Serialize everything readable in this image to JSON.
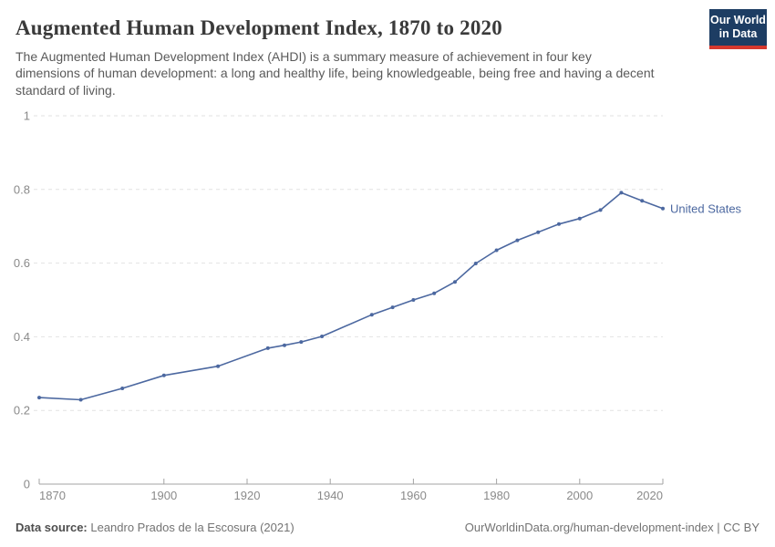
{
  "header": {
    "title": "Augmented Human Development Index, 1870 to 2020",
    "subtitle": "The Augmented Human Development Index (AHDI) is a summary measure of achievement in four key dimensions of human development: a long and healthy life, being knowledgeable, being free and having a decent standard of living.",
    "logo": {
      "line1": "Our World",
      "line2": "in Data",
      "bg_color": "#1d3d63",
      "stripe_color": "#d5382e"
    }
  },
  "chart_data": {
    "type": "line",
    "title": "Augmented Human Development Index, 1870 to 2020",
    "x": [
      1870,
      1880,
      1890,
      1900,
      1913,
      1925,
      1929,
      1933,
      1938,
      1950,
      1955,
      1960,
      1965,
      1970,
      1975,
      1980,
      1985,
      1990,
      1995,
      2000,
      2005,
      2010,
      2015,
      2020
    ],
    "series": [
      {
        "name": "United States",
        "color": "#4c68a0",
        "values": [
          0.235,
          0.229,
          0.26,
          0.295,
          0.32,
          0.369,
          0.377,
          0.386,
          0.401,
          0.46,
          0.48,
          0.5,
          0.518,
          0.549,
          0.599,
          0.635,
          0.662,
          0.684,
          0.706,
          0.721,
          0.744,
          0.791,
          0.769,
          0.748
        ]
      }
    ],
    "xlim": [
      1870,
      2020
    ],
    "ylim": [
      0,
      1
    ],
    "x_ticks": [
      1870,
      1900,
      1920,
      1940,
      1960,
      1980,
      2000,
      2020
    ],
    "y_ticks": [
      0,
      0.2,
      0.4,
      0.6,
      0.8,
      1
    ],
    "y_tick_labels": [
      "0",
      "0.2",
      "0.4",
      "0.6",
      "0.8",
      "1"
    ],
    "grid": "horizontal-dashed",
    "legend_position": "line-end-label",
    "colors": {
      "grid": "#e2e2e2",
      "axis": "#a3a3a3",
      "tick_label": "#8a8a8a"
    }
  },
  "footer": {
    "source_label": "Data source:",
    "source_value": " Leandro Prados de la Escosura (2021)",
    "url": "OurWorldinData.org/human-development-index",
    "separator": " | ",
    "license": "CC BY"
  }
}
